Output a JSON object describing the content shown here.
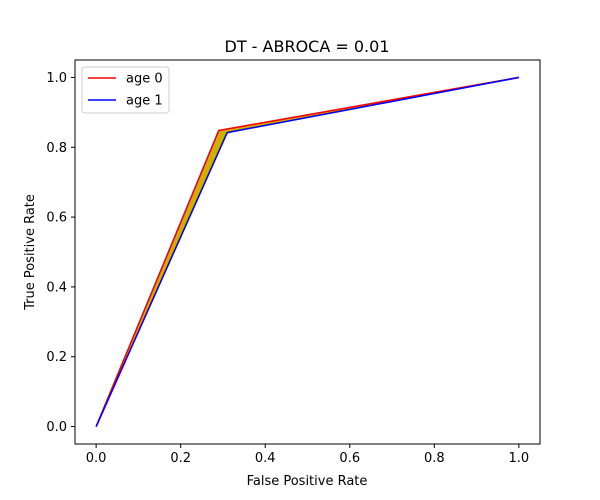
{
  "chart_data": {
    "type": "line",
    "title": "DT - ABROCA = 0.01",
    "xlabel": "False Positive Rate",
    "ylabel": "True Positive Rate",
    "xlim": [
      -0.05,
      1.05
    ],
    "ylim": [
      -0.05,
      1.05
    ],
    "xticks": [
      0.0,
      0.2,
      0.4,
      0.6,
      0.8,
      1.0
    ],
    "yticks": [
      0.0,
      0.2,
      0.4,
      0.6,
      0.8,
      1.0
    ],
    "xtick_labels": [
      "0.0",
      "0.2",
      "0.4",
      "0.6",
      "0.8",
      "1.0"
    ],
    "ytick_labels": [
      "0.0",
      "0.2",
      "0.4",
      "0.6",
      "0.8",
      "1.0"
    ],
    "grid": false,
    "legend_position": "top-left",
    "series": [
      {
        "name": "age 0",
        "color": "#ff0000",
        "x": [
          0.0,
          0.29,
          1.0
        ],
        "y": [
          0.0,
          0.848,
          1.0
        ]
      },
      {
        "name": "age 1",
        "color": "#0000ff",
        "x": [
          0.0,
          0.31,
          1.0
        ],
        "y": [
          0.0,
          0.842,
          1.0
        ]
      }
    ],
    "fill_between": {
      "color": "#c8b400"
    }
  }
}
